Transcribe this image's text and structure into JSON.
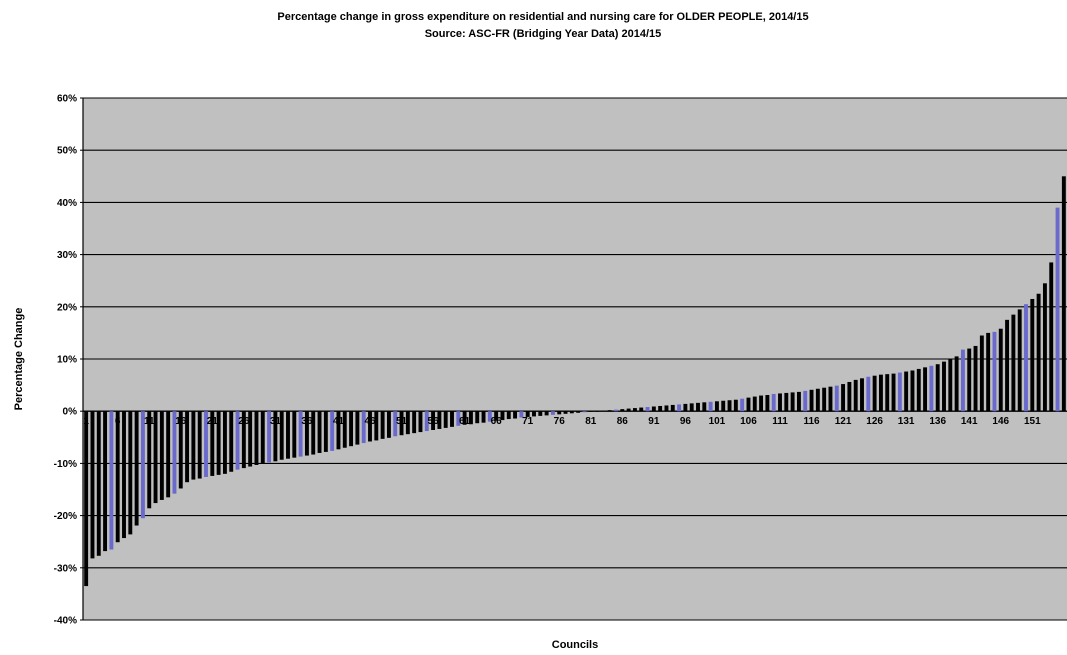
{
  "chart_data": {
    "type": "bar",
    "title": "Percentage change in gross expenditure on residential and nursing care for OLDER PEOPLE, 2014/15",
    "subtitle": "Source: ASC-FR (Bridging Year Data) 2014/15",
    "xlabel": "Councils",
    "ylabel": "Percentage Change",
    "ylim": [
      -40,
      60
    ],
    "y_ticks": [
      "60%",
      "50%",
      "40%",
      "30%",
      "20%",
      "10%",
      "0%",
      "-10%",
      "-20%",
      "-30%",
      "-40%"
    ],
    "x_tick_labels": [
      "1",
      "6",
      "11",
      "16",
      "21",
      "26",
      "31",
      "36",
      "41",
      "46",
      "51",
      "56",
      "61",
      "66",
      "71",
      "76",
      "81",
      "86",
      "91",
      "96",
      "101",
      "106",
      "111",
      "116",
      "121",
      "126",
      "131",
      "136",
      "141",
      "146",
      "151"
    ],
    "grid": true,
    "plot_background": "#c0c0c0",
    "bar_color": "#000000",
    "highlight_bar_color": "#6a6acd",
    "highlight_every": 5,
    "values": [
      -33.5,
      -28.2,
      -27.7,
      -26.8,
      -26.5,
      -25.1,
      -24.3,
      -23.6,
      -21.9,
      -20.5,
      -18.6,
      -17.6,
      -17.0,
      -16.5,
      -15.8,
      -14.8,
      -13.6,
      -13.1,
      -12.9,
      -12.6,
      -12.4,
      -12.2,
      -12.0,
      -11.6,
      -11.2,
      -10.9,
      -10.6,
      -10.3,
      -10.0,
      -9.8,
      -9.6,
      -9.3,
      -9.1,
      -8.9,
      -8.7,
      -8.5,
      -8.3,
      -8.0,
      -7.8,
      -7.6,
      -7.3,
      -7.0,
      -6.7,
      -6.4,
      -6.1,
      -5.8,
      -5.6,
      -5.3,
      -5.1,
      -4.8,
      -4.6,
      -4.4,
      -4.2,
      -4.0,
      -3.8,
      -3.6,
      -3.4,
      -3.2,
      -3.0,
      -2.8,
      -2.6,
      -2.5,
      -2.3,
      -2.2,
      -2.0,
      -1.8,
      -1.7,
      -1.5,
      -1.4,
      -1.2,
      -1.1,
      -1.0,
      -0.9,
      -0.8,
      -0.7,
      -0.6,
      -0.5,
      -0.4,
      -0.3,
      -0.2,
      -0.1,
      0.0,
      0.1,
      0.2,
      0.3,
      0.4,
      0.5,
      0.6,
      0.7,
      0.8,
      0.9,
      1.0,
      1.1,
      1.2,
      1.3,
      1.4,
      1.5,
      1.6,
      1.7,
      1.8,
      1.9,
      2.0,
      2.1,
      2.2,
      2.4,
      2.6,
      2.8,
      3.0,
      3.1,
      3.3,
      3.4,
      3.5,
      3.6,
      3.7,
      3.9,
      4.1,
      4.3,
      4.5,
      4.7,
      4.9,
      5.2,
      5.6,
      6.0,
      6.3,
      6.6,
      6.8,
      7.0,
      7.1,
      7.2,
      7.4,
      7.6,
      7.8,
      8.1,
      8.4,
      8.7,
      9.0,
      9.5,
      10.0,
      10.5,
      11.8,
      12.0,
      12.5,
      14.5,
      15.0,
      15.2,
      15.8,
      17.5,
      18.5,
      19.5,
      20.5,
      21.5,
      22.5,
      24.5,
      28.5,
      39.0,
      45.0
    ]
  }
}
